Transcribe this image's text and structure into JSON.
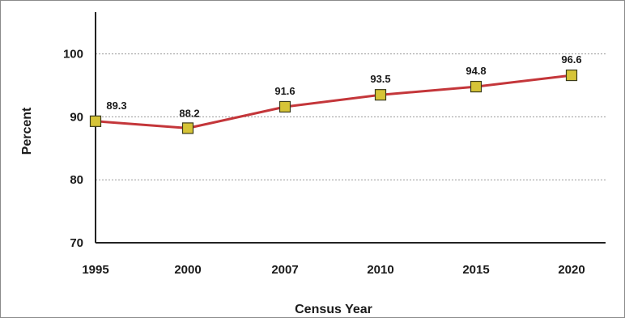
{
  "chart_data": {
    "type": "line",
    "title": "",
    "xlabel": "Census Year",
    "ylabel": "Percent",
    "categories": [
      "1995",
      "2000",
      "2007",
      "2010",
      "2015",
      "2020"
    ],
    "series": [
      {
        "values": [
          89.3,
          88.2,
          91.6,
          93.5,
          94.8,
          96.6
        ],
        "color": "#c4363a"
      }
    ],
    "data_labels": [
      "89.3",
      "88.2",
      "91.6",
      "93.5",
      "94.8",
      "96.6"
    ],
    "y_ticks": [
      "70",
      "80",
      "90",
      "100"
    ],
    "ylim": [
      70,
      106
    ],
    "grid": true,
    "marker": "square",
    "marker_color": "#d6c437"
  }
}
